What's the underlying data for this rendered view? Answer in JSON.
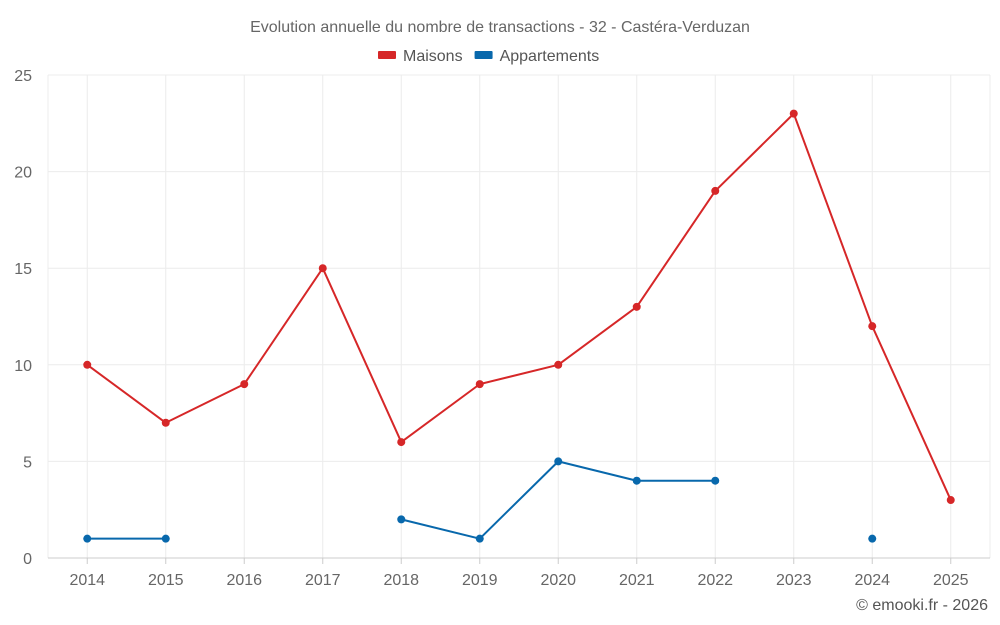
{
  "chart_data": {
    "type": "line",
    "title": "Evolution annuelle du nombre de transactions - 32 - Castéra-Verduzan",
    "categories": [
      "2014",
      "2015",
      "2016",
      "2017",
      "2018",
      "2019",
      "2020",
      "2021",
      "2022",
      "2023",
      "2024",
      "2025"
    ],
    "ylim": [
      0,
      25
    ],
    "yticks": [
      0,
      5,
      10,
      15,
      20,
      25
    ],
    "grid": true,
    "legend": "top-center",
    "series": [
      {
        "name": "Maisons",
        "color": "#d62728",
        "values": [
          10,
          7,
          9,
          15,
          6,
          9,
          10,
          13,
          19,
          23,
          12,
          3
        ]
      },
      {
        "name": "Appartements",
        "color": "#0868ac",
        "values": [
          1,
          1,
          null,
          null,
          2,
          1,
          5,
          4,
          4,
          null,
          1,
          null
        ]
      }
    ],
    "credit": "© emooki.fr - 2026"
  }
}
